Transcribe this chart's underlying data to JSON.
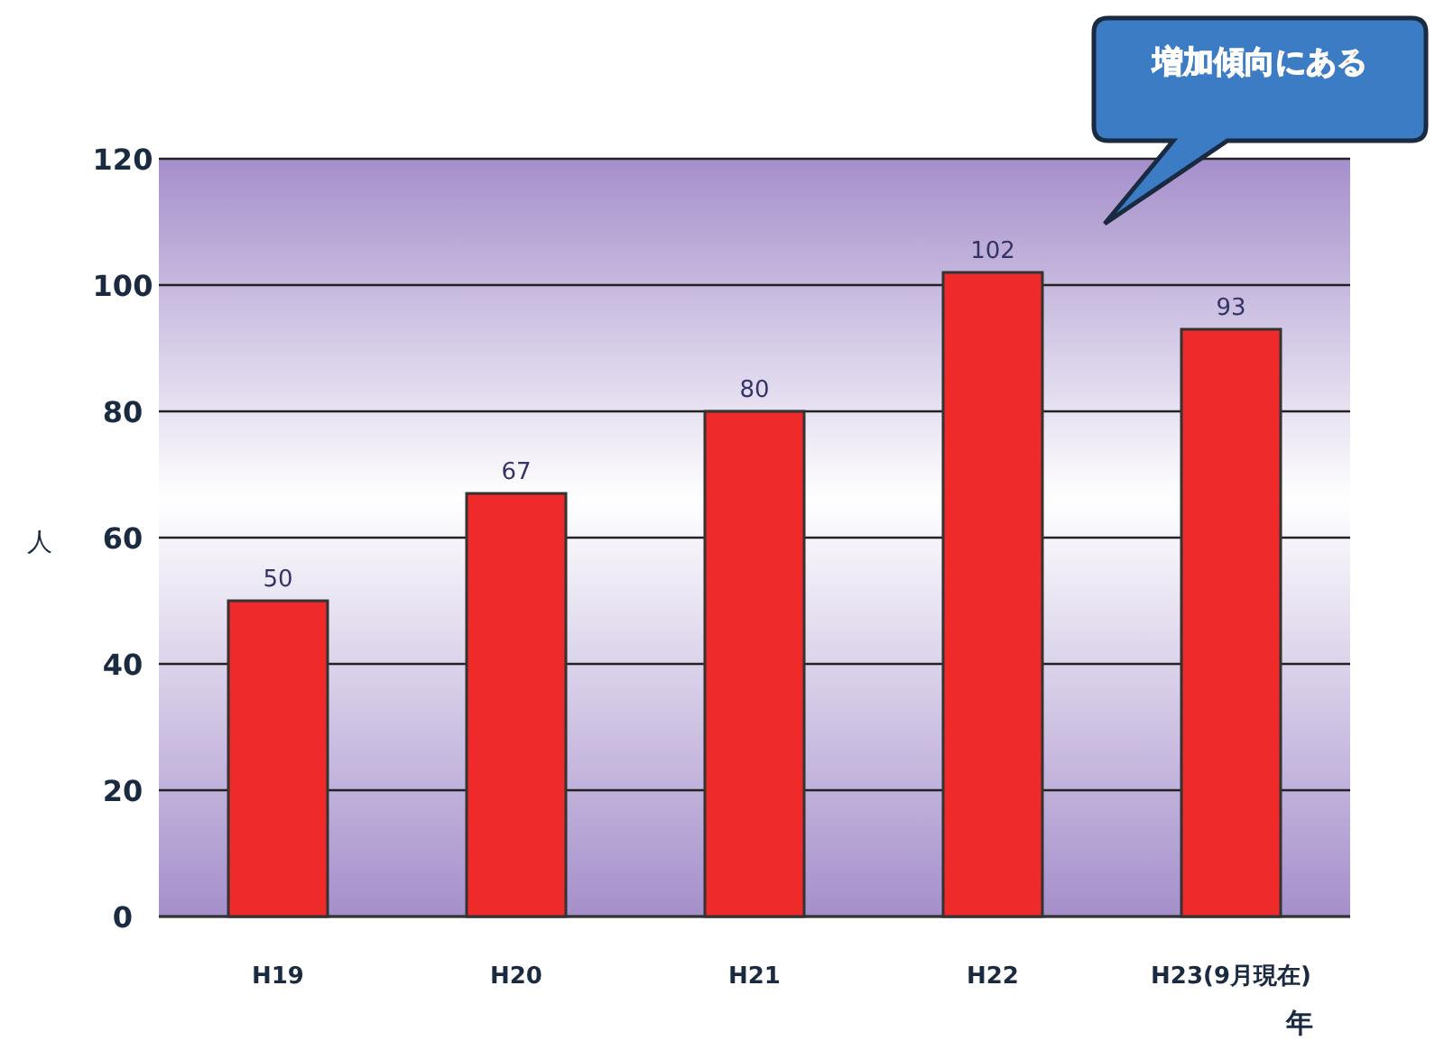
{
  "chart_data": {
    "type": "bar",
    "categories": [
      "H19",
      "H20",
      "H21",
      "H22",
      "H23(9月現在)"
    ],
    "values": [
      50,
      67,
      80,
      102,
      93
    ],
    "color": "#ee2a2a",
    "ylim": [
      0,
      120
    ],
    "yticks": [
      0,
      20,
      40,
      60,
      80,
      100,
      120
    ],
    "grid": "y",
    "data_labels": true,
    "xlabel": "年",
    "ylabel": "人",
    "annotations": [
      "増加傾向にある"
    ]
  }
}
